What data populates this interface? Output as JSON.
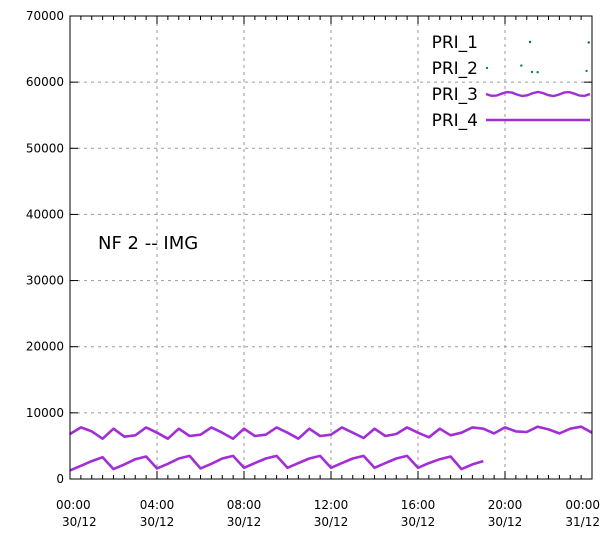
{
  "chart_data": {
    "type": "line",
    "title": "",
    "xlabel": "",
    "ylabel": "",
    "annotation": "NF 2 -- IMG",
    "ylim": [
      0,
      70000
    ],
    "y_ticks": [
      "0",
      "10000",
      "20000",
      "30000",
      "40000",
      "50000",
      "60000",
      "70000"
    ],
    "xlim_hours": [
      0,
      48
    ],
    "x_ticks": [
      {
        "time": "00:00",
        "date": "30/12"
      },
      {
        "time": "04:00",
        "date": "30/12"
      },
      {
        "time": "08:00",
        "date": "30/12"
      },
      {
        "time": "12:00",
        "date": "30/12"
      },
      {
        "time": "16:00",
        "date": "30/12"
      },
      {
        "time": "20:00",
        "date": "30/12"
      },
      {
        "time": "00:00",
        "date": "31/12"
      }
    ],
    "grid": true,
    "legend_position": "top-right",
    "colors": {
      "PRI_1": "#0b6b3a",
      "PRI_2": "#0b8a4a",
      "PRI_3": "#a22fd6",
      "PRI_4": "#a22fd6"
    },
    "series": [
      {
        "name": "PRI_1",
        "x": [
          47.7
        ],
        "y": [
          66000
        ]
      },
      {
        "name": "PRI_2",
        "x": [
          41.5,
          43.0,
          47.5
        ],
        "y": [
          62500,
          61500,
          61700
        ]
      },
      {
        "name": "PRI_3",
        "x": [
          0,
          1.0,
          2.0,
          3.0,
          4.0,
          5.0,
          6.0,
          7.0,
          8.0,
          9.0,
          10.0,
          11.0,
          12.0,
          13.0,
          14.0,
          15.0,
          16.0,
          17.0,
          18.0,
          19.0,
          20.0,
          21.0,
          22.0,
          23.0,
          24.0,
          25.0,
          26.0,
          27.0,
          28.0,
          29.0,
          30.0,
          31.0,
          32.0,
          33.0,
          34.0,
          35.0,
          36.0,
          37.0,
          38.0,
          39.0,
          40.0,
          41.0,
          42.0,
          43.0,
          44.0,
          45.0,
          46.0,
          47.0,
          48.0
        ],
        "y": [
          6800,
          7800,
          7200,
          6100,
          7600,
          6400,
          6600,
          7800,
          7000,
          6100,
          7600,
          6500,
          6700,
          7800,
          7000,
          6100,
          7600,
          6500,
          6700,
          7800,
          7000,
          6100,
          7600,
          6500,
          6700,
          7800,
          7000,
          6200,
          7600,
          6500,
          6800,
          7800,
          7000,
          6300,
          7600,
          6600,
          7000,
          7800,
          7600,
          6900,
          7800,
          7200,
          7100,
          7900,
          7500,
          6900,
          7600,
          7900,
          7000
        ]
      },
      {
        "name": "PRI_4",
        "x": [
          0,
          1.0,
          2.0,
          3.0,
          4.0,
          5.0,
          6.0,
          7.0,
          8.0,
          9.0,
          10.0,
          11.0,
          12.0,
          13.0,
          14.0,
          15.0,
          16.0,
          17.0,
          18.0,
          19.0,
          20.0,
          21.0,
          22.0,
          23.0,
          24.0,
          25.0,
          26.0,
          27.0,
          28.0,
          29.0,
          30.0,
          31.0,
          32.0,
          33.0,
          34.0,
          35.0,
          36.0,
          37.0,
          38.0
        ],
        "y": [
          1300,
          2000,
          2700,
          3300,
          1500,
          2200,
          3000,
          3400,
          1600,
          2300,
          3100,
          3500,
          1600,
          2300,
          3100,
          3500,
          1700,
          2400,
          3100,
          3500,
          1700,
          2400,
          3100,
          3500,
          1700,
          2400,
          3100,
          3500,
          1700,
          2400,
          3100,
          3500,
          1700,
          2400,
          3000,
          3400,
          1500,
          2200,
          2700
        ]
      }
    ]
  }
}
